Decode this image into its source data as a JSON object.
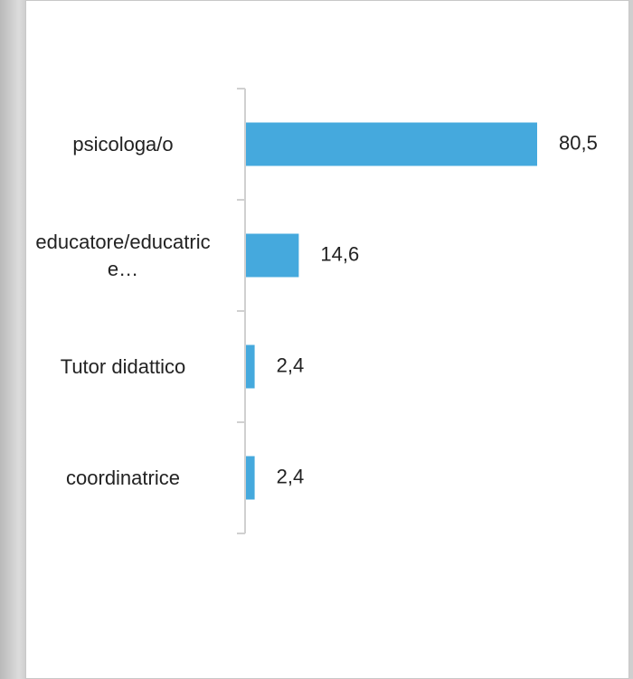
{
  "chart_data": {
    "type": "barh",
    "categories": [
      "psicologa/o",
      "educatore/educatrice…",
      "Tutor didattico",
      "coordinatrice"
    ],
    "values": [
      80.5,
      14.6,
      2.4,
      2.4
    ],
    "value_labels": [
      "80,5",
      "14,6",
      "2,4",
      "2,4"
    ],
    "color": "#45a9dd",
    "xlim": [
      0,
      100
    ]
  }
}
